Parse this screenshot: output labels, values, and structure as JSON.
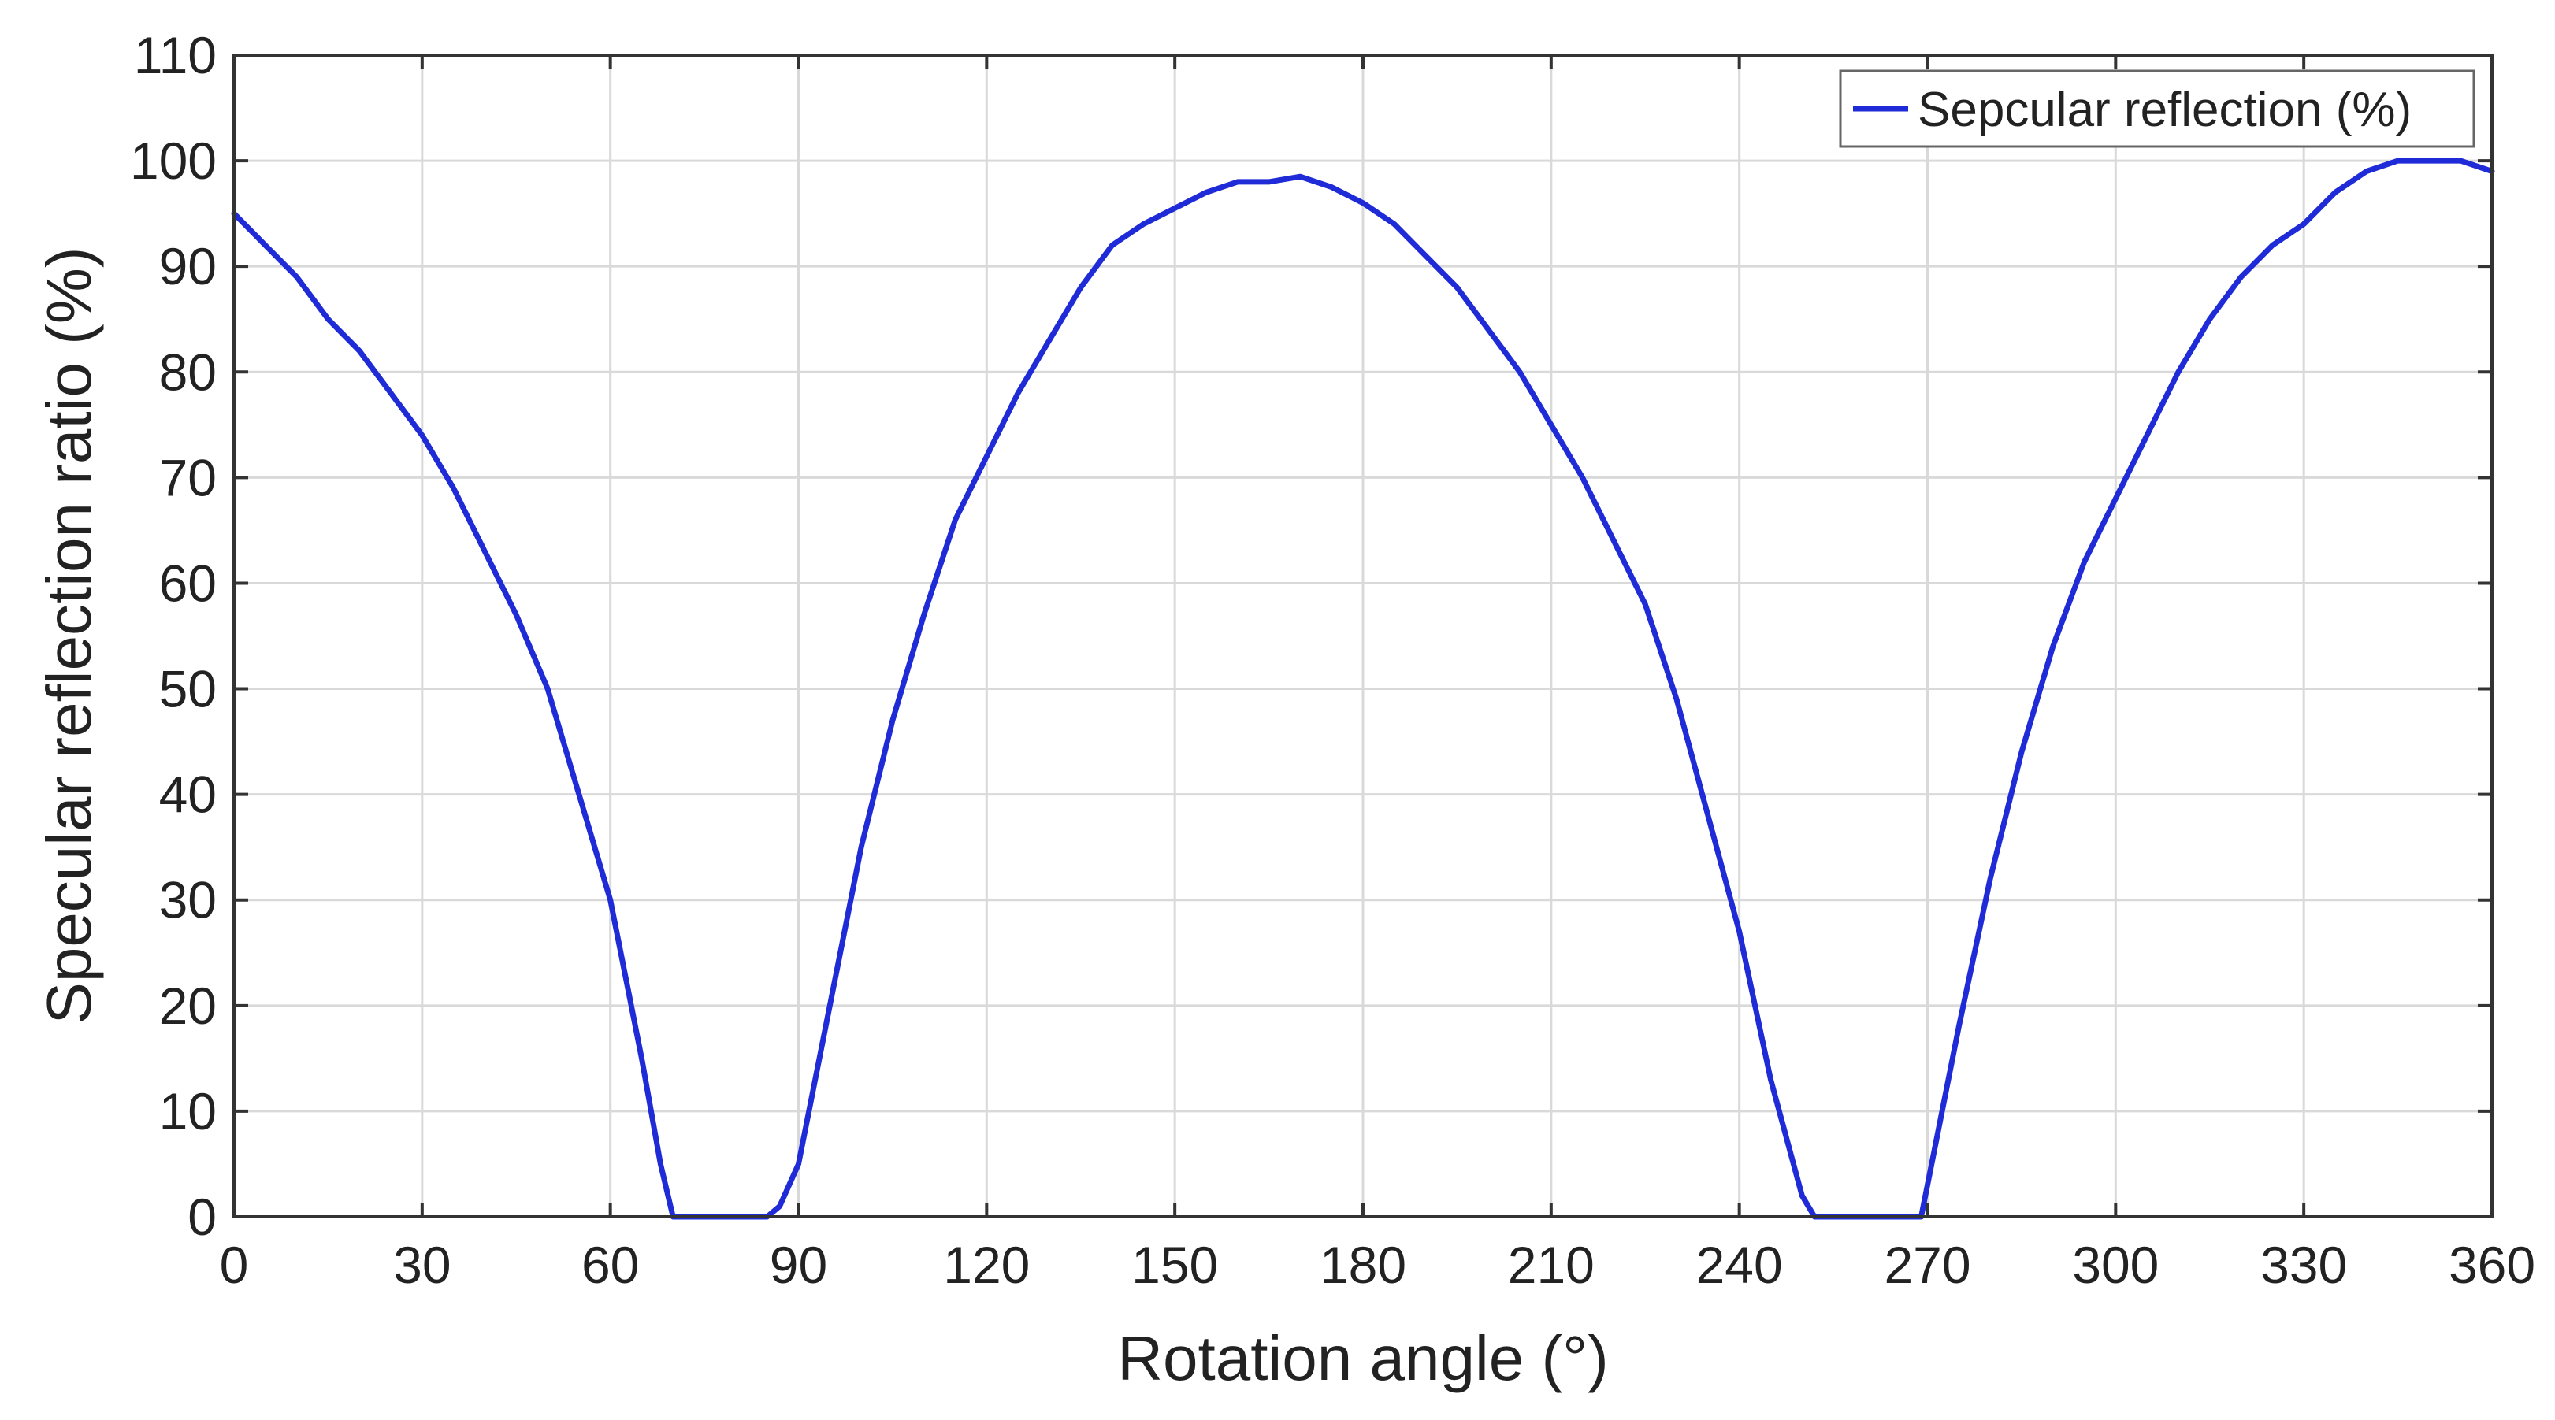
{
  "chart_data": {
    "type": "line",
    "title": "",
    "xlabel": "Rotation angle (°)",
    "ylabel": "Specular reflection ratio (%)",
    "xlim": [
      0,
      360
    ],
    "ylim": [
      0,
      110
    ],
    "xticks": [
      0,
      30,
      60,
      90,
      120,
      150,
      180,
      210,
      240,
      270,
      300,
      330,
      360
    ],
    "yticks": [
      0,
      10,
      20,
      30,
      40,
      50,
      60,
      70,
      80,
      90,
      100,
      110
    ],
    "grid": true,
    "legend_position": "top-right",
    "series": [
      {
        "name": "Sepcular reflection (%)",
        "color": "#1f2bd6",
        "x": [
          0,
          5,
          10,
          15,
          20,
          25,
          30,
          35,
          40,
          45,
          50,
          55,
          60,
          65,
          68,
          70,
          75,
          80,
          85,
          87,
          90,
          95,
          100,
          105,
          110,
          115,
          120,
          125,
          130,
          135,
          140,
          145,
          150,
          155,
          160,
          165,
          170,
          175,
          180,
          185,
          190,
          195,
          200,
          205,
          210,
          215,
          220,
          225,
          230,
          235,
          240,
          245,
          250,
          252,
          255,
          260,
          265,
          269,
          272,
          275,
          280,
          285,
          290,
          295,
          300,
          305,
          310,
          315,
          320,
          325,
          330,
          335,
          340,
          345,
          350,
          355,
          360
        ],
        "y": [
          95,
          92,
          89,
          85,
          82,
          78,
          74,
          69,
          63,
          57,
          50,
          40,
          30,
          15,
          5,
          0,
          0,
          0,
          0,
          1,
          5,
          20,
          35,
          47,
          57,
          66,
          72,
          78,
          83,
          88,
          92,
          94,
          95.5,
          97,
          98,
          98,
          98.5,
          97.5,
          96,
          94,
          91,
          88,
          84,
          80,
          75,
          70,
          64,
          58,
          49,
          38,
          27,
          13,
          2,
          0,
          0,
          0,
          0,
          0,
          9,
          18,
          32,
          44,
          54,
          62,
          68,
          74,
          80,
          85,
          89,
          92,
          94,
          97,
          99,
          100,
          100,
          100,
          99
        ]
      }
    ]
  }
}
